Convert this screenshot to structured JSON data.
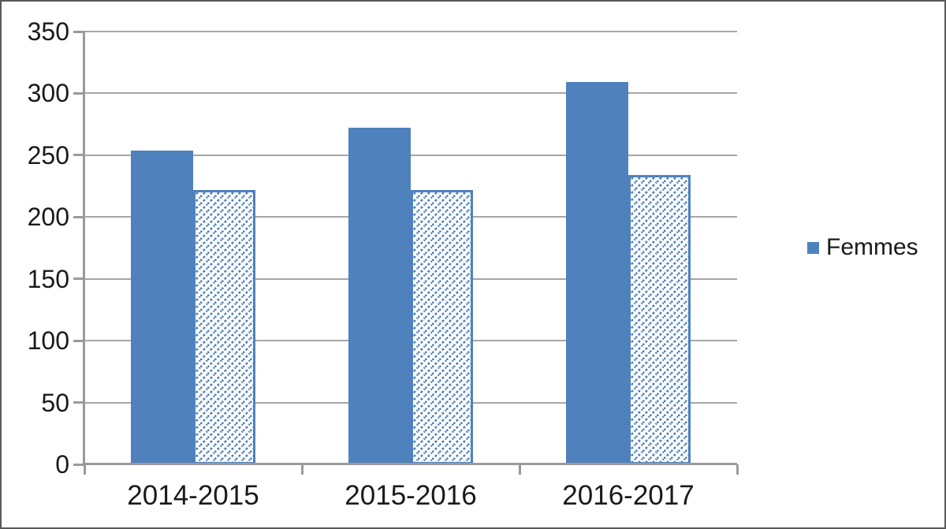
{
  "chart_data": {
    "type": "bar",
    "categories": [
      "2014-2015",
      "2015-2016",
      "2016-2017"
    ],
    "series": [
      {
        "name": "Femmes",
        "style": "solid",
        "values": [
          254,
          272,
          309
        ]
      },
      {
        "name": "",
        "style": "hatched",
        "values": [
          222,
          222,
          234
        ]
      }
    ],
    "title": "",
    "xlabel": "",
    "ylabel": "",
    "ylim": [
      0,
      350
    ],
    "ytick_step": 50,
    "ytick_labels": [
      "0",
      "50",
      "100",
      "150",
      "200",
      "250",
      "300",
      "350"
    ],
    "grid": true,
    "legend_position": "right",
    "legend_visible_entries": [
      "Femmes"
    ]
  },
  "legend": {
    "label": "Femmes"
  },
  "colors": {
    "bar_fill": "#4f81bd",
    "hatch_stroke": "#4f81bd",
    "hatch_background": "#ffffff",
    "gridline": "#a6a6a6",
    "axis_line": "#9a9a9a",
    "tick": "#9a9a9a",
    "text": "#1a1a1a",
    "chart_border": "#595959",
    "background": "#ffffff"
  }
}
